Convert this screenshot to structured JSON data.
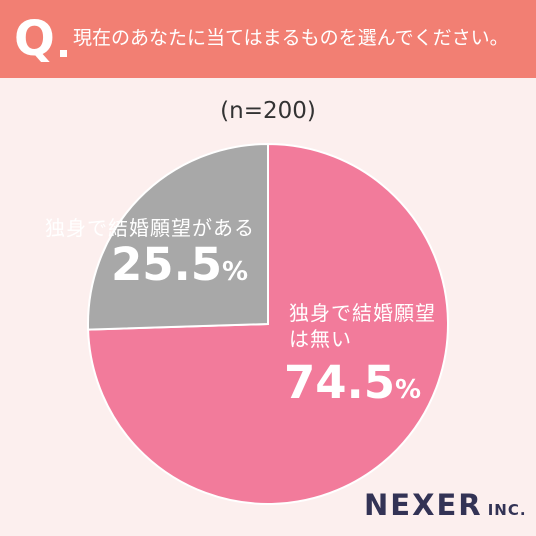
{
  "header": {
    "q_label": "Q",
    "question": "現在のあなたに当てはまるものを選んでください。"
  },
  "chart_data": {
    "type": "pie",
    "sample_label": "(n=200)",
    "slices": [
      {
        "label": "独身で結婚願望は無い",
        "value": 74.5,
        "color": "#f27b9b"
      },
      {
        "label": "独身で結婚願望がある",
        "value": 25.5,
        "color": "#a8a8a8"
      }
    ],
    "start_angle": "12 o'clock, clockwise"
  },
  "labels": {
    "gray_label": "独身で結婚願望がある",
    "gray_pct": "25.5",
    "pink_label": "独身で結婚願望は無い",
    "pink_pct": "74.5",
    "pct_unit": "%"
  },
  "logo": {
    "main": "NEXER",
    "sub": "INC."
  }
}
